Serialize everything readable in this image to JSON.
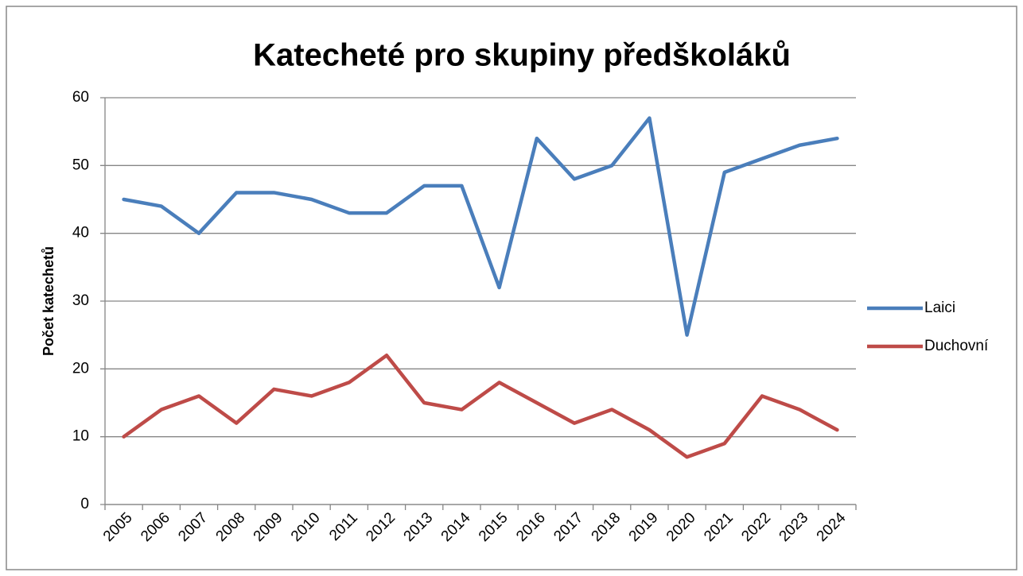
{
  "chart_data": {
    "type": "line",
    "title": "Katecheté pro skupiny předškoláků",
    "y_label": "Počet katechetů",
    "categories": [
      "2005",
      "2006",
      "2007",
      "2008",
      "2009",
      "2010",
      "2011",
      "2012",
      "2013",
      "2014",
      "2015",
      "2016",
      "2017",
      "2018",
      "2019",
      "2020",
      "2021",
      "2022",
      "2023",
      "2024"
    ],
    "series": [
      {
        "name": "Laici",
        "color": "#4a7ebb",
        "values": [
          45,
          44,
          40,
          46,
          46,
          45,
          43,
          43,
          47,
          47,
          32,
          54,
          48,
          50,
          57,
          25,
          49,
          51,
          53,
          54
        ]
      },
      {
        "name": "Duchovní",
        "color": "#be4b48",
        "values": [
          10,
          14,
          16,
          12,
          17,
          16,
          18,
          22,
          15,
          14,
          18,
          15,
          12,
          14,
          11,
          7,
          9,
          16,
          14,
          11
        ]
      }
    ],
    "ylim": [
      0,
      60
    ],
    "yticks": [
      0,
      10,
      20,
      30,
      40,
      50,
      60
    ],
    "grid": true,
    "legend": "right"
  }
}
